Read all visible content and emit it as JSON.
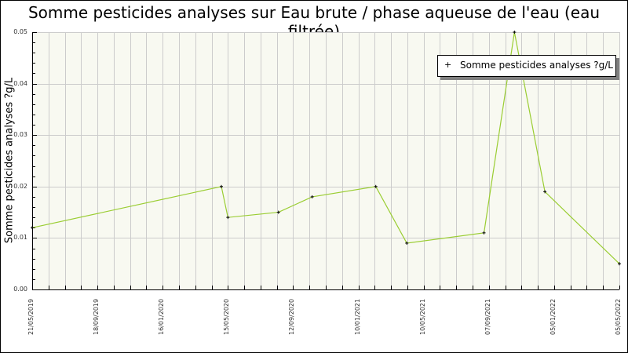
{
  "chart_data": {
    "type": "line",
    "title": "Somme pesticides analyses sur Eau brute / phase aqueuse de l'eau (eau filtrée)",
    "xlabel": "",
    "ylabel": "Somme pesticides analyses ?g/L",
    "ylim": [
      0,
      0.05
    ],
    "yticks": [
      "0.00",
      "0.01",
      "0.02",
      "0.03",
      "0.04",
      "0.05"
    ],
    "xticks": [
      "21/05/2019",
      "18/09/2019",
      "16/01/2020",
      "15/05/2020",
      "12/09/2020",
      "10/01/2021",
      "10/05/2021",
      "07/09/2021",
      "05/01/2022",
      "05/05/2022"
    ],
    "grid": true,
    "legend_position": "top-right",
    "series": [
      {
        "name": "Somme pesticides analyses ?g/L",
        "color": "#9acd32",
        "x": [
          "21/05/2019",
          "03/05/2020",
          "15/05/2020",
          "16/08/2020",
          "17/10/2020",
          "11/02/2021",
          "09/04/2021",
          "29/08/2021",
          "24/10/2021",
          "19/12/2021",
          "05/05/2022"
        ],
        "values": [
          0.012,
          0.02,
          0.014,
          0.015,
          0.018,
          0.02,
          0.009,
          0.011,
          0.05,
          0.019,
          0.005
        ]
      }
    ]
  },
  "legend": {
    "label": "Somme pesticides analyses ?g/L"
  },
  "colors": {
    "plot_background": "#f8f9f1",
    "grid": "#cccccc",
    "line": "#9acd32",
    "marker": "#000000"
  }
}
